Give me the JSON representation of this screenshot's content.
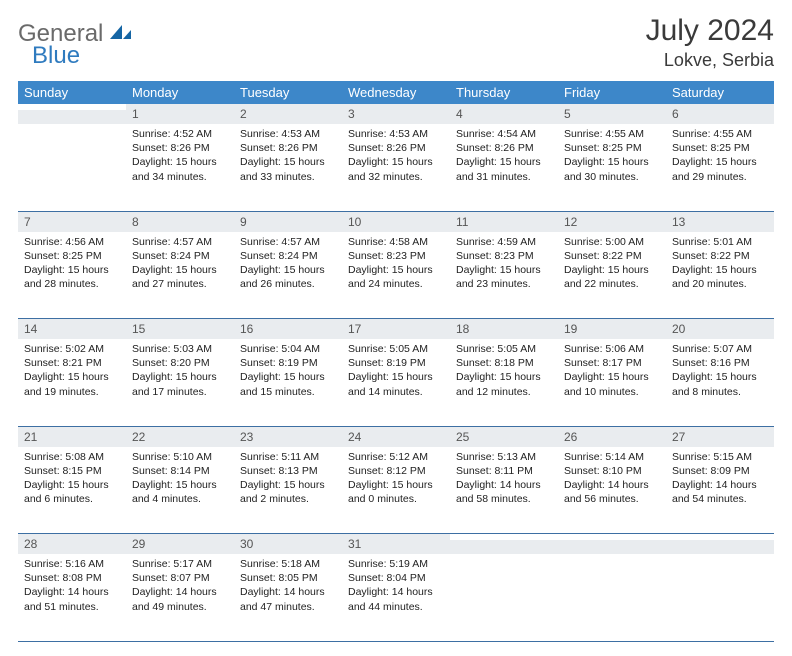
{
  "brand": {
    "word1": "General",
    "word2": "Blue"
  },
  "title": {
    "month": "July 2024",
    "location": "Lokve, Serbia"
  },
  "colors": {
    "header_bg": "#3d87c9",
    "header_fg": "#ffffff",
    "daynum_bg": "#e9ecef",
    "rule": "#3d6fa3",
    "logo_gray": "#6a6a6a",
    "logo_blue": "#2f7bbf"
  },
  "weekdays": [
    "Sunday",
    "Monday",
    "Tuesday",
    "Wednesday",
    "Thursday",
    "Friday",
    "Saturday"
  ],
  "weeks": [
    [
      null,
      {
        "n": "1",
        "sr": "4:52 AM",
        "ss": "8:26 PM",
        "dl": "15 hours and 34 minutes."
      },
      {
        "n": "2",
        "sr": "4:53 AM",
        "ss": "8:26 PM",
        "dl": "15 hours and 33 minutes."
      },
      {
        "n": "3",
        "sr": "4:53 AM",
        "ss": "8:26 PM",
        "dl": "15 hours and 32 minutes."
      },
      {
        "n": "4",
        "sr": "4:54 AM",
        "ss": "8:26 PM",
        "dl": "15 hours and 31 minutes."
      },
      {
        "n": "5",
        "sr": "4:55 AM",
        "ss": "8:25 PM",
        "dl": "15 hours and 30 minutes."
      },
      {
        "n": "6",
        "sr": "4:55 AM",
        "ss": "8:25 PM",
        "dl": "15 hours and 29 minutes."
      }
    ],
    [
      {
        "n": "7",
        "sr": "4:56 AM",
        "ss": "8:25 PM",
        "dl": "15 hours and 28 minutes."
      },
      {
        "n": "8",
        "sr": "4:57 AM",
        "ss": "8:24 PM",
        "dl": "15 hours and 27 minutes."
      },
      {
        "n": "9",
        "sr": "4:57 AM",
        "ss": "8:24 PM",
        "dl": "15 hours and 26 minutes."
      },
      {
        "n": "10",
        "sr": "4:58 AM",
        "ss": "8:23 PM",
        "dl": "15 hours and 24 minutes."
      },
      {
        "n": "11",
        "sr": "4:59 AM",
        "ss": "8:23 PM",
        "dl": "15 hours and 23 minutes."
      },
      {
        "n": "12",
        "sr": "5:00 AM",
        "ss": "8:22 PM",
        "dl": "15 hours and 22 minutes."
      },
      {
        "n": "13",
        "sr": "5:01 AM",
        "ss": "8:22 PM",
        "dl": "15 hours and 20 minutes."
      }
    ],
    [
      {
        "n": "14",
        "sr": "5:02 AM",
        "ss": "8:21 PM",
        "dl": "15 hours and 19 minutes."
      },
      {
        "n": "15",
        "sr": "5:03 AM",
        "ss": "8:20 PM",
        "dl": "15 hours and 17 minutes."
      },
      {
        "n": "16",
        "sr": "5:04 AM",
        "ss": "8:19 PM",
        "dl": "15 hours and 15 minutes."
      },
      {
        "n": "17",
        "sr": "5:05 AM",
        "ss": "8:19 PM",
        "dl": "15 hours and 14 minutes."
      },
      {
        "n": "18",
        "sr": "5:05 AM",
        "ss": "8:18 PM",
        "dl": "15 hours and 12 minutes."
      },
      {
        "n": "19",
        "sr": "5:06 AM",
        "ss": "8:17 PM",
        "dl": "15 hours and 10 minutes."
      },
      {
        "n": "20",
        "sr": "5:07 AM",
        "ss": "8:16 PM",
        "dl": "15 hours and 8 minutes."
      }
    ],
    [
      {
        "n": "21",
        "sr": "5:08 AM",
        "ss": "8:15 PM",
        "dl": "15 hours and 6 minutes."
      },
      {
        "n": "22",
        "sr": "5:10 AM",
        "ss": "8:14 PM",
        "dl": "15 hours and 4 minutes."
      },
      {
        "n": "23",
        "sr": "5:11 AM",
        "ss": "8:13 PM",
        "dl": "15 hours and 2 minutes."
      },
      {
        "n": "24",
        "sr": "5:12 AM",
        "ss": "8:12 PM",
        "dl": "15 hours and 0 minutes."
      },
      {
        "n": "25",
        "sr": "5:13 AM",
        "ss": "8:11 PM",
        "dl": "14 hours and 58 minutes."
      },
      {
        "n": "26",
        "sr": "5:14 AM",
        "ss": "8:10 PM",
        "dl": "14 hours and 56 minutes."
      },
      {
        "n": "27",
        "sr": "5:15 AM",
        "ss": "8:09 PM",
        "dl": "14 hours and 54 minutes."
      }
    ],
    [
      {
        "n": "28",
        "sr": "5:16 AM",
        "ss": "8:08 PM",
        "dl": "14 hours and 51 minutes."
      },
      {
        "n": "29",
        "sr": "5:17 AM",
        "ss": "8:07 PM",
        "dl": "14 hours and 49 minutes."
      },
      {
        "n": "30",
        "sr": "5:18 AM",
        "ss": "8:05 PM",
        "dl": "14 hours and 47 minutes."
      },
      {
        "n": "31",
        "sr": "5:19 AM",
        "ss": "8:04 PM",
        "dl": "14 hours and 44 minutes."
      },
      null,
      null,
      null
    ]
  ],
  "labels": {
    "sunrise": "Sunrise:",
    "sunset": "Sunset:",
    "daylight": "Daylight:"
  }
}
